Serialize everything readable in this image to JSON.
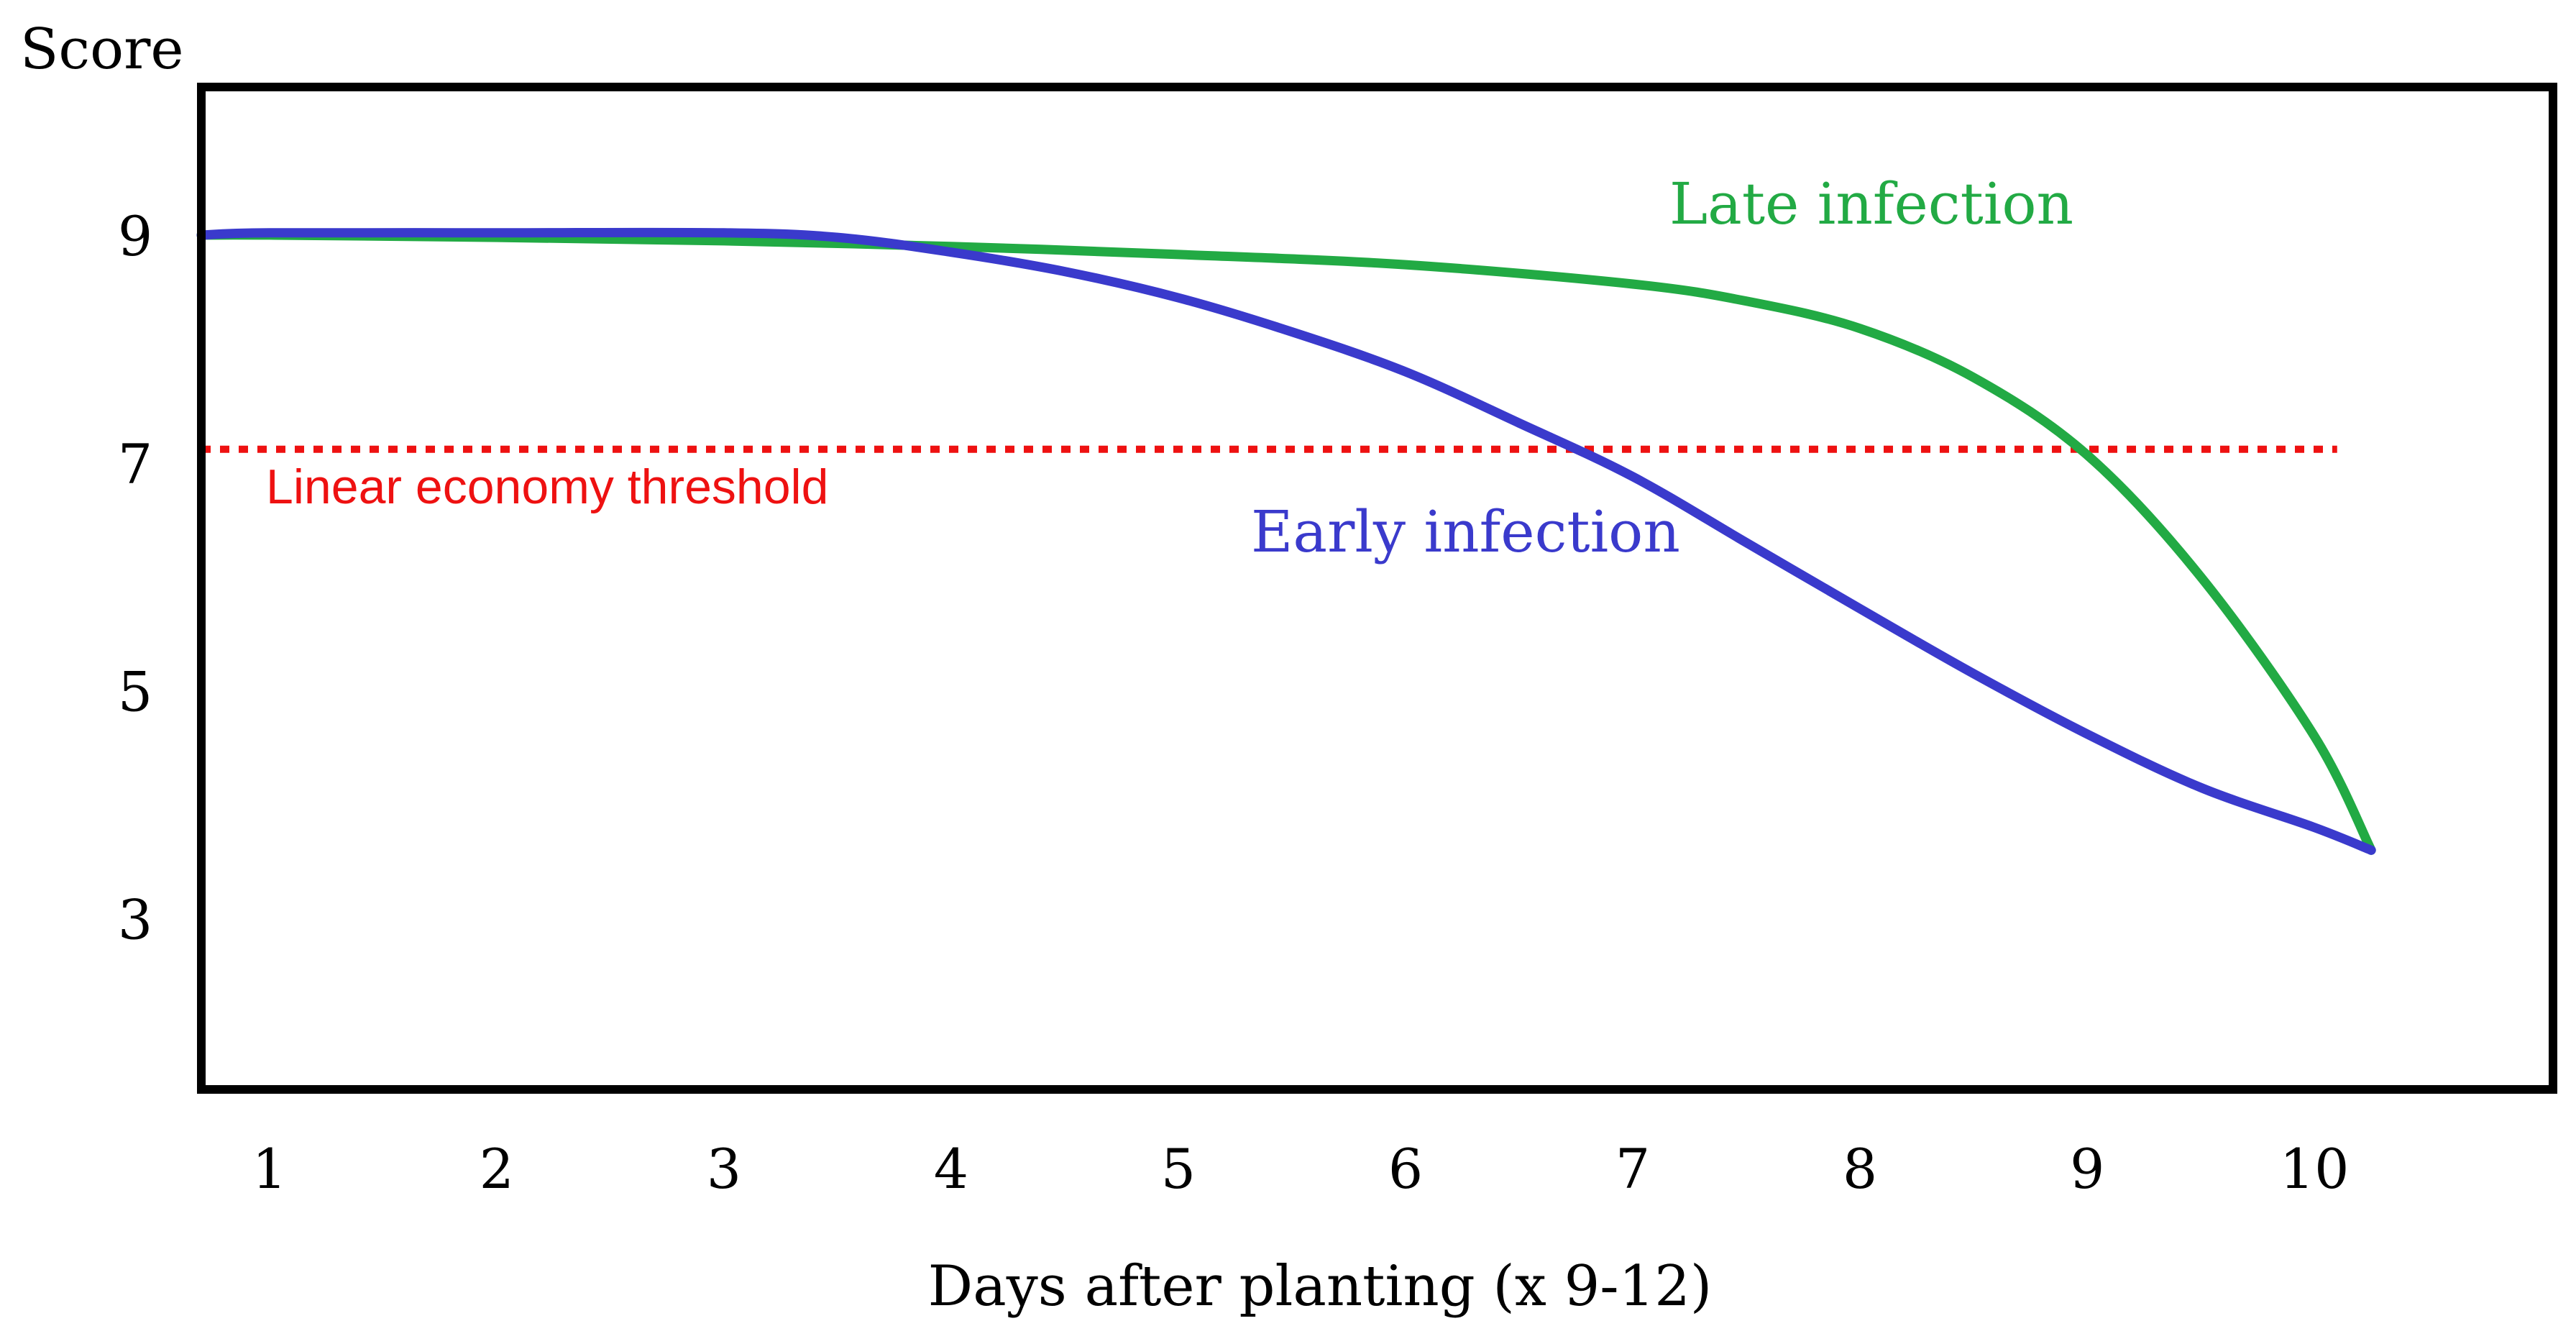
{
  "chart_data": {
    "type": "line",
    "ylabel": "Score",
    "xlabel": "Days after planting (x 9-12)",
    "x_ticks": [
      "1",
      "2",
      "3",
      "4",
      "5",
      "6",
      "7",
      "8",
      "9",
      "10"
    ],
    "y_ticks": [
      "9",
      "7",
      "5",
      "3"
    ],
    "xlim": [
      0.7,
      11.05
    ],
    "ylim": [
      1.5,
      10.3
    ],
    "grid": false,
    "series": [
      {
        "name": "Late infection",
        "color": "#22aa44",
        "x": [
          0.7,
          1,
          2,
          3,
          4,
          5,
          6,
          7,
          7.5,
          8,
          8.5,
          9,
          9.5,
          10,
          10.25
        ],
        "y": [
          9.0,
          9.0,
          8.98,
          8.95,
          8.9,
          8.83,
          8.74,
          8.57,
          8.42,
          8.18,
          7.75,
          7.07,
          6.0,
          4.6,
          3.6
        ]
      },
      {
        "name": "Early infection",
        "color": "#3a3acc",
        "x": [
          0.7,
          1,
          2,
          3,
          3.5,
          4,
          4.5,
          5,
          5.5,
          6,
          6.5,
          7,
          7.5,
          8,
          8.5,
          9,
          9.5,
          10,
          10.25
        ],
        "y": [
          9.0,
          9.02,
          9.02,
          9.02,
          8.98,
          8.85,
          8.68,
          8.45,
          8.15,
          7.8,
          7.35,
          6.88,
          6.3,
          5.72,
          5.15,
          4.62,
          4.15,
          3.8,
          3.6
        ]
      }
    ],
    "threshold": {
      "label": "Linear economy threshold",
      "y": 7.12,
      "x_start": 0.7,
      "x_end": 10.1,
      "color": "#ee1111"
    }
  }
}
